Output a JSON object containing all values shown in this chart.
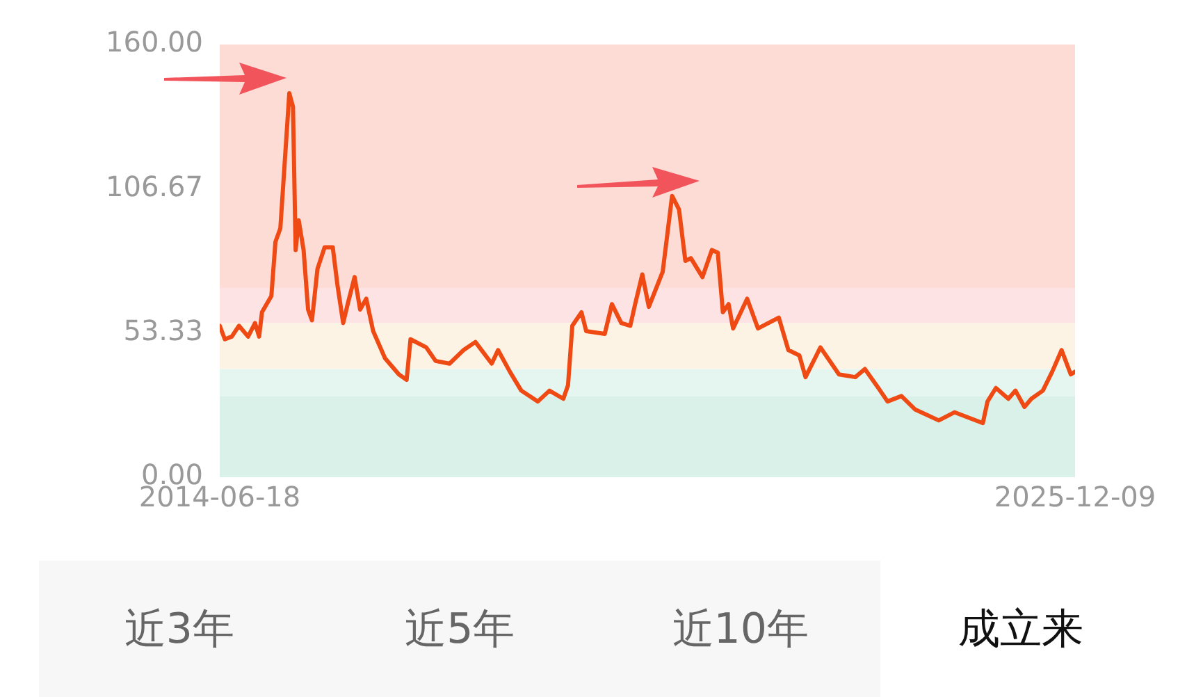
{
  "chart_data": {
    "type": "line",
    "x": [
      "2014-06-18",
      "2014-07-13",
      "2014-08-16",
      "2014-09-20",
      "2014-11-04",
      "2014-12-08",
      "2014-12-28",
      "2015-01-11",
      "2015-02-26",
      "2015-03-18",
      "2015-04-11",
      "2015-05-25",
      "2015-06-12",
      "2015-06-25",
      "2015-07-10",
      "2015-08-03",
      "2015-08-25",
      "2015-09-13",
      "2015-10-10",
      "2015-11-14",
      "2015-12-24",
      "2016-01-16",
      "2016-02-13",
      "2016-03-06",
      "2016-04-09",
      "2016-05-06",
      "2016-06-05",
      "2016-07-09",
      "2016-09-05",
      "2016-11-12",
      "2016-12-20",
      "2017-01-08",
      "2017-03-26",
      "2017-05-11",
      "2017-07-18",
      "2017-09-25",
      "2017-11-22",
      "2018-02-10",
      "2018-03-13",
      "2018-05-10",
      "2018-07-05",
      "2018-09-24",
      "2018-11-20",
      "2019-01-27",
      "2019-02-19",
      "2019-03-12",
      "2019-04-26",
      "2019-05-19",
      "2019-08-18",
      "2019-09-22",
      "2019-11-07",
      "2019-12-21",
      "2020-01-14",
      "2020-02-18",
      "2020-03-21",
      "2020-05-28",
      "2020-07-13",
      "2020-08-16",
      "2020-09-16",
      "2020-10-13",
      "2020-12-09",
      "2021-01-24",
      "2021-02-22",
      "2021-03-19",
      "2021-04-16",
      "2021-05-08",
      "2021-07-16",
      "2021-09-07",
      "2021-12-18",
      "2022-02-03",
      "2022-03-29",
      "2022-04-28",
      "2022-07-10",
      "2022-10-09",
      "2022-12-28",
      "2023-02-13",
      "2023-04-20",
      "2023-06-04",
      "2023-08-11",
      "2023-10-18",
      "2024-02-10",
      "2024-04-28",
      "2024-09-13",
      "2024-10-06",
      "2024-11-16",
      "2025-01-16",
      "2025-02-20",
      "2025-04-05",
      "2025-05-09",
      "2025-07-04",
      "2025-08-19",
      "2025-10-04",
      "2025-11-18",
      "2025-12-09"
    ],
    "series": [
      {
        "color": "#f04a14",
        "values": [
          56,
          51,
          52,
          56,
          52,
          57,
          52,
          61,
          67,
          87,
          92,
          142,
          137,
          84,
          95,
          84,
          62,
          58,
          77,
          85,
          85,
          71,
          57,
          64,
          74,
          62,
          66,
          54,
          44,
          38,
          36,
          51,
          48,
          43,
          42,
          47,
          50,
          42,
          47,
          39,
          32,
          28,
          32,
          29,
          34,
          56,
          61,
          54,
          53,
          64,
          57,
          56,
          64,
          75,
          63,
          76,
          104,
          99,
          80,
          81,
          74,
          84,
          83,
          61,
          64,
          55,
          66,
          55,
          59,
          47,
          45,
          37,
          48,
          38,
          37,
          40,
          33,
          28,
          30,
          25,
          21,
          24,
          20,
          28,
          33,
          29,
          32,
          26,
          29,
          32,
          39,
          47,
          38,
          39
        ]
      }
    ],
    "xlim": [
      "2014-06-18",
      "2025-12-09"
    ],
    "xticks": [
      "2014-06-18",
      "2025-12-09"
    ],
    "ylim": [
      0,
      160
    ],
    "yticks": [
      {
        "value": 0,
        "label": "0.00"
      },
      {
        "value": 53.33,
        "label": "53.33"
      },
      {
        "value": 106.67,
        "label": "106.67"
      },
      {
        "value": 160,
        "label": "160.00"
      }
    ],
    "bands": [
      {
        "axis": "y",
        "from": 70,
        "to": 160,
        "color": "#fddcd6"
      },
      {
        "axis": "y",
        "from": 57,
        "to": 70,
        "color": "#fde3e4"
      },
      {
        "axis": "y",
        "from": 40,
        "to": 57,
        "color": "#fdf3e5"
      },
      {
        "axis": "y",
        "from": 30,
        "to": 40,
        "color": "#e5f6f0"
      },
      {
        "axis": "y",
        "from": 0,
        "to": 30,
        "color": "#d9f1e8"
      }
    ],
    "grid": false,
    "legend": false,
    "marker": "none",
    "line_style": "solid",
    "annotations": [
      "近3年",
      "近5年",
      "近10年",
      "成立来"
    ]
  }
}
